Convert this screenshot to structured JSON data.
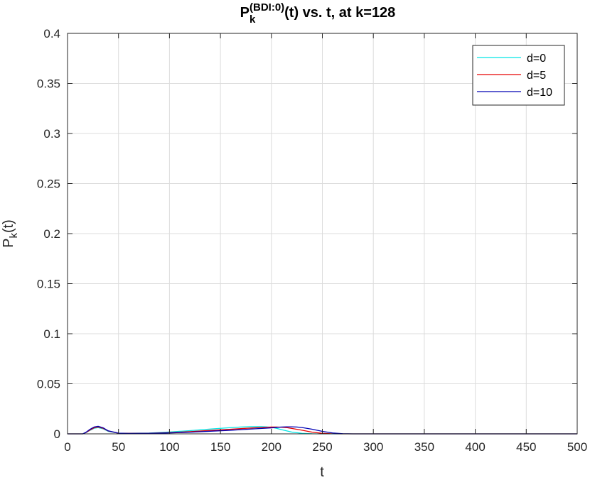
{
  "chart_data": {
    "type": "line",
    "title": {
      "main": "P",
      "superscript": "(BDI:0)",
      "subscript": "k",
      "suffix": "(t) vs. t, at k=128"
    },
    "xlabel": "t",
    "ylabel": {
      "main": "P",
      "subscript": "k",
      "suffix": "(t)"
    },
    "xlim": [
      0,
      500
    ],
    "ylim": [
      0,
      0.4
    ],
    "xticks": [
      0,
      50,
      100,
      150,
      200,
      250,
      300,
      350,
      400,
      450,
      500
    ],
    "yticks": [
      0,
      0.05,
      0.1,
      0.15,
      0.2,
      0.25,
      0.3,
      0.35,
      0.4
    ],
    "xtick_labels": [
      "0",
      "50",
      "100",
      "150",
      "200",
      "250",
      "300",
      "350",
      "400",
      "450",
      "500"
    ],
    "ytick_labels": [
      "0",
      "0.05",
      "0.1",
      "0.15",
      "0.2",
      "0.25",
      "0.3",
      "0.35",
      "0.4"
    ],
    "grid": true,
    "legend_position": "top-right",
    "series": [
      {
        "name": "d=0",
        "color": "#00e5e5",
        "x": [
          0,
          15,
          18,
          22,
          26,
          30,
          35,
          40,
          50,
          60,
          80,
          100,
          120,
          140,
          160,
          170,
          180,
          190,
          195,
          200,
          205,
          210,
          220,
          230,
          240,
          250,
          260,
          500
        ],
        "y": [
          0,
          0,
          0.0012,
          0.0035,
          0.0055,
          0.0062,
          0.005,
          0.0025,
          0.0006,
          0.0006,
          0.0008,
          0.0018,
          0.0032,
          0.0048,
          0.0062,
          0.0068,
          0.0072,
          0.0072,
          0.007,
          0.0065,
          0.0055,
          0.0042,
          0.0018,
          0.0005,
          0.0001,
          0,
          0,
          0
        ]
      },
      {
        "name": "d=5",
        "color": "#e60000",
        "x": [
          0,
          15,
          18,
          22,
          26,
          30,
          35,
          40,
          50,
          60,
          80,
          100,
          120,
          140,
          160,
          180,
          190,
          200,
          205,
          210,
          215,
          220,
          230,
          240,
          250,
          260,
          270,
          500
        ],
        "y": [
          0,
          0,
          0.0013,
          0.0038,
          0.006,
          0.0068,
          0.0055,
          0.0028,
          0.0006,
          0.0005,
          0.0006,
          0.0012,
          0.0022,
          0.0034,
          0.0046,
          0.0058,
          0.0064,
          0.0068,
          0.0068,
          0.0066,
          0.0062,
          0.0054,
          0.0036,
          0.0017,
          0.0005,
          0.0001,
          0,
          0
        ]
      },
      {
        "name": "d=10",
        "color": "#0000b4",
        "x": [
          0,
          15,
          18,
          22,
          26,
          30,
          35,
          40,
          50,
          60,
          80,
          100,
          120,
          140,
          160,
          180,
          200,
          210,
          215,
          220,
          225,
          230,
          240,
          250,
          260,
          270,
          280,
          500
        ],
        "y": [
          0,
          0,
          0.0015,
          0.0045,
          0.0068,
          0.0075,
          0.006,
          0.003,
          0.0007,
          0.0004,
          0.0005,
          0.0009,
          0.0016,
          0.0026,
          0.0036,
          0.0048,
          0.006,
          0.0068,
          0.007,
          0.007,
          0.0068,
          0.0063,
          0.0046,
          0.0025,
          0.0009,
          0.0002,
          0,
          0
        ]
      }
    ]
  }
}
